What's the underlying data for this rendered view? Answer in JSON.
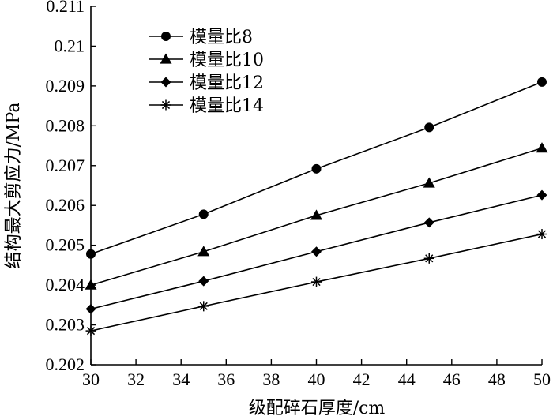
{
  "chart_data": {
    "type": "line",
    "title": "",
    "xlabel": "级配碎石厚度/cm",
    "ylabel": "结构最大剪应力/MPa",
    "xlim": [
      30,
      50
    ],
    "ylim": [
      0.202,
      0.211
    ],
    "xticks": [
      "30",
      "32",
      "34",
      "36",
      "38",
      "40",
      "42",
      "44",
      "46",
      "48",
      "50"
    ],
    "yticks": [
      "0.202",
      "0.203",
      "0.204",
      "0.205",
      "0.206",
      "0.207",
      "0.208",
      "0.209",
      "0.21",
      "0.211"
    ],
    "grid": false,
    "legend_position": "top-left",
    "x": [
      30,
      35,
      40,
      45,
      50
    ],
    "series": [
      {
        "name": "模量比8",
        "marker": "circle",
        "values": [
          0.20478,
          0.20578,
          0.20692,
          0.20796,
          0.2091
        ]
      },
      {
        "name": "模量比10",
        "marker": "triangle",
        "values": [
          0.204,
          0.20484,
          0.20575,
          0.20656,
          0.20744
        ]
      },
      {
        "name": "模量比12",
        "marker": "diamond",
        "values": [
          0.2034,
          0.2041,
          0.20484,
          0.20557,
          0.20626
        ]
      },
      {
        "name": "模量比14",
        "marker": "asterisk",
        "values": [
          0.20285,
          0.20347,
          0.20408,
          0.20467,
          0.20528
        ]
      }
    ]
  }
}
